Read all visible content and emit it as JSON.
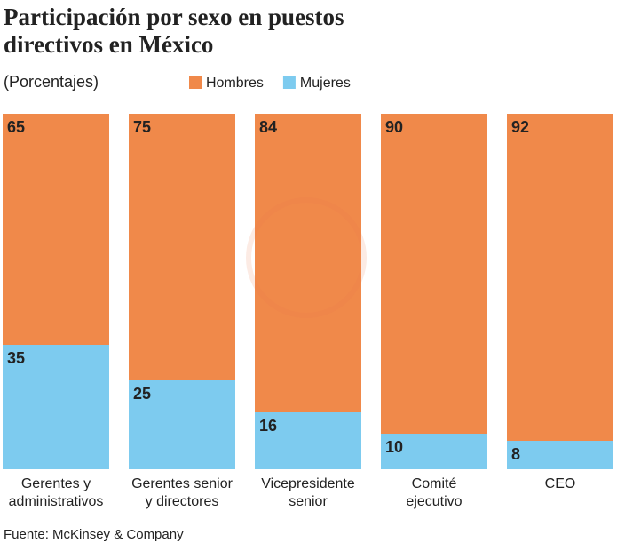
{
  "chart_data": {
    "type": "stacked_bar_100",
    "title": "Participación por sexo en puestos directivos en México",
    "subtitle": "(Porcentajes)",
    "source": "Fuente: McKinsey & Company",
    "categories": [
      [
        "Gerentes y",
        "administrativos"
      ],
      [
        "Gerentes senior",
        "y directores"
      ],
      [
        "Vicepresidente",
        "senior"
      ],
      [
        "Comité",
        "ejecutivo"
      ],
      [
        "CEO"
      ]
    ],
    "series": [
      {
        "name": "Hombres",
        "color": "#f0894a",
        "values": [
          65,
          75,
          84,
          90,
          92
        ]
      },
      {
        "name": "Mujeres",
        "color": "#7dcbef",
        "values": [
          35,
          25,
          16,
          10,
          8
        ]
      }
    ]
  }
}
